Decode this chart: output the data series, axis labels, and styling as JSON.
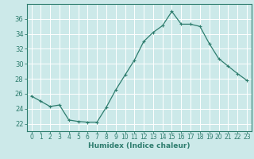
{
  "x": [
    0,
    1,
    2,
    3,
    4,
    5,
    6,
    7,
    8,
    9,
    10,
    11,
    12,
    13,
    14,
    15,
    16,
    17,
    18,
    19,
    20,
    21,
    22,
    23
  ],
  "y": [
    25.7,
    25.0,
    24.3,
    24.5,
    22.5,
    22.3,
    22.2,
    22.2,
    24.2,
    26.5,
    28.5,
    30.5,
    33.0,
    34.2,
    35.1,
    37.0,
    35.3,
    35.3,
    35.0,
    32.7,
    30.7,
    29.7,
    28.7,
    27.8
  ],
  "line_color": "#2e7d6e",
  "marker": "+",
  "marker_size": 3,
  "marker_lw": 0.8,
  "bg_color": "#cce9e9",
  "grid_color": "#ffffff",
  "xlabel": "Humidex (Indice chaleur)",
  "ylabel": "",
  "ylim": [
    21,
    38
  ],
  "xlim": [
    -0.5,
    23.5
  ],
  "yticks": [
    22,
    24,
    26,
    28,
    30,
    32,
    34,
    36
  ],
  "xticks": [
    0,
    1,
    2,
    3,
    4,
    5,
    6,
    7,
    8,
    9,
    10,
    11,
    12,
    13,
    14,
    15,
    16,
    17,
    18,
    19,
    20,
    21,
    22,
    23
  ],
  "tick_color": "#2e7d6e",
  "axis_color": "#2e7d6e",
  "line_width": 0.9,
  "xlabel_fontsize": 6.5,
  "tick_fontsize": 5.5,
  "ytick_fontsize": 6.0
}
